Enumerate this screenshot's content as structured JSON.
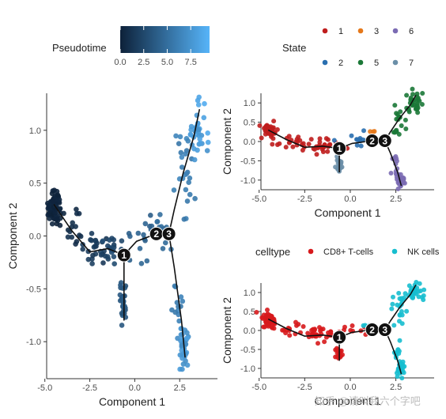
{
  "legends": {
    "pseudotime": {
      "title": "Pseudotime",
      "ticks": [
        0.0,
        2.5,
        5.0,
        7.5
      ],
      "tick_labels": [
        "0.0",
        "2.5",
        "5.0",
        "7.5"
      ],
      "range": [
        0,
        9.5
      ],
      "color_low": "#0d2139",
      "color_high": "#56b4f9"
    },
    "state": {
      "title": "State",
      "items": [
        {
          "label": "1",
          "color": "#bf1d1d"
        },
        {
          "label": "3",
          "color": "#e5781a"
        },
        {
          "label": "6",
          "color": "#7b6bb3"
        },
        {
          "label": "2",
          "color": "#2a6fb0"
        },
        {
          "label": "5",
          "color": "#1b7837"
        },
        {
          "label": "7",
          "color": "#6b8fa8"
        }
      ]
    },
    "celltype": {
      "title": "celltype",
      "items": [
        {
          "label": "CD8+ T-cells",
          "color": "#d7191c"
        },
        {
          "label": "NK cells",
          "color": "#17becf"
        }
      ]
    }
  },
  "watermark": "知乎 @请叫我六个字吧",
  "chart_data": [
    {
      "type": "scatter",
      "panel": "pseudotime",
      "xlabel": "Component 1",
      "ylabel": "Component 2",
      "xlim": [
        -4.9,
        4.6
      ],
      "ylim": [
        -1.35,
        1.35
      ],
      "xticks": [
        -5,
        -2.5,
        0,
        2.5
      ],
      "xtick_labels": [
        "-5.0",
        "-2.5",
        "0.0",
        "2.5"
      ],
      "yticks": [
        -1,
        -0.5,
        0,
        0.5,
        1
      ],
      "ytick_labels": [
        "-1.0",
        "-0.5",
        "0.0",
        "0.5",
        "1.0"
      ],
      "color_by": "Pseudotime",
      "trajectory": [
        [
          -4.5,
          0.3
        ],
        [
          -3.5,
          0.05
        ],
        [
          -2.5,
          -0.15
        ],
        [
          -1.5,
          -0.12
        ],
        [
          -0.6,
          -0.18
        ],
        [
          0.1,
          -0.05
        ],
        [
          1.2,
          0.02
        ],
        [
          1.9,
          0.02
        ],
        [
          2.2,
          0.25
        ],
        [
          2.7,
          0.6
        ],
        [
          3.3,
          0.95
        ],
        [
          3.6,
          1.2
        ]
      ],
      "trajectory_branches": [
        [
          [
            -0.6,
            -0.18
          ],
          [
            -0.6,
            -0.8
          ]
        ],
        [
          [
            1.9,
            0.02
          ],
          [
            2.2,
            -0.3
          ],
          [
            2.6,
            -0.8
          ],
          [
            2.8,
            -1.15
          ]
        ]
      ],
      "branch_nodes": [
        {
          "label": "1",
          "x": -0.6,
          "y": -0.18
        },
        {
          "label": "2",
          "x": 1.2,
          "y": 0.02
        },
        {
          "label": "3",
          "x": 1.9,
          "y": 0.02
        }
      ],
      "clusters": [
        {
          "x": -4.45,
          "y": 0.28,
          "sx": 0.18,
          "sy": 0.09,
          "n": 70,
          "t": [
            0.0,
            0.4
          ]
        },
        {
          "x": -3.4,
          "y": 0.02,
          "sx": 0.35,
          "sy": 0.08,
          "n": 14,
          "t": [
            0.5,
            1.2
          ]
        },
        {
          "x": -2.2,
          "y": -0.1,
          "sx": 0.45,
          "sy": 0.1,
          "n": 28,
          "t": [
            1.2,
            2.2
          ]
        },
        {
          "x": -1.0,
          "y": -0.1,
          "sx": 0.45,
          "sy": 0.08,
          "n": 18,
          "t": [
            2.2,
            3.0
          ]
        },
        {
          "x": -0.65,
          "y": -0.6,
          "sx": 0.1,
          "sy": 0.12,
          "n": 30,
          "t": [
            3.0,
            3.8
          ]
        },
        {
          "x": 0.5,
          "y": 0.05,
          "sx": 0.5,
          "sy": 0.12,
          "n": 18,
          "t": [
            3.8,
            4.6
          ]
        },
        {
          "x": 1.5,
          "y": 0.05,
          "sx": 0.3,
          "sy": 0.08,
          "n": 12,
          "t": [
            4.6,
            5.2
          ]
        },
        {
          "x": 2.8,
          "y": 0.6,
          "sx": 0.25,
          "sy": 0.2,
          "n": 25,
          "t": [
            5.5,
            6.8
          ]
        },
        {
          "x": 3.5,
          "y": 1.0,
          "sx": 0.22,
          "sy": 0.12,
          "n": 35,
          "t": [
            7.0,
            9.0
          ]
        },
        {
          "x": 2.5,
          "y": -0.6,
          "sx": 0.15,
          "sy": 0.15,
          "n": 12,
          "t": [
            5.5,
            6.5
          ]
        },
        {
          "x": 2.75,
          "y": -1.05,
          "sx": 0.12,
          "sy": 0.1,
          "n": 40,
          "t": [
            6.8,
            8.2
          ]
        }
      ]
    },
    {
      "type": "scatter",
      "panel": "state",
      "xlabel": "Component 1",
      "ylabel": "Component 2",
      "xlim": [
        -4.9,
        4.6
      ],
      "ylim": [
        -1.25,
        1.25
      ],
      "xticks": [
        -5,
        -2.5,
        0,
        2.5
      ],
      "xtick_labels": [
        "-5.0",
        "-2.5",
        "0.0",
        "2.5"
      ],
      "yticks": [
        -1,
        -0.5,
        0,
        0.5,
        1
      ],
      "ytick_labels": [
        "-1.0",
        "-0.5",
        "0.0",
        "0.5",
        "1.0"
      ],
      "color_by": "State",
      "trajectory": [
        [
          -4.5,
          0.3
        ],
        [
          -3.5,
          0.05
        ],
        [
          -2.5,
          -0.15
        ],
        [
          -1.5,
          -0.12
        ],
        [
          -0.6,
          -0.18
        ],
        [
          0.1,
          -0.05
        ],
        [
          1.2,
          0.02
        ],
        [
          1.9,
          0.02
        ],
        [
          2.2,
          0.25
        ],
        [
          2.7,
          0.6
        ],
        [
          3.3,
          0.95
        ],
        [
          3.6,
          1.2
        ]
      ],
      "trajectory_branches": [
        [
          [
            -0.6,
            -0.18
          ],
          [
            -0.6,
            -0.8
          ]
        ],
        [
          [
            1.9,
            0.02
          ],
          [
            2.2,
            -0.3
          ],
          [
            2.6,
            -0.8
          ],
          [
            2.8,
            -1.15
          ]
        ]
      ],
      "branch_nodes": [
        {
          "label": "1",
          "x": -0.6,
          "y": -0.18
        },
        {
          "label": "2",
          "x": 1.2,
          "y": 0.02
        },
        {
          "label": "3",
          "x": 1.9,
          "y": 0.02
        }
      ],
      "clusters": [
        {
          "x": -4.45,
          "y": 0.28,
          "sx": 0.18,
          "sy": 0.09,
          "n": 50,
          "state": "1"
        },
        {
          "x": -3.4,
          "y": 0.02,
          "sx": 0.35,
          "sy": 0.08,
          "n": 12,
          "state": "1"
        },
        {
          "x": -2.2,
          "y": -0.1,
          "sx": 0.45,
          "sy": 0.1,
          "n": 25,
          "state": "1"
        },
        {
          "x": -1.0,
          "y": -0.1,
          "sx": 0.45,
          "sy": 0.08,
          "n": 12,
          "state": "1"
        },
        {
          "x": -0.65,
          "y": -0.6,
          "sx": 0.1,
          "sy": 0.12,
          "n": 25,
          "state": "7"
        },
        {
          "x": 0.5,
          "y": 0.05,
          "sx": 0.5,
          "sy": 0.12,
          "n": 14,
          "state": "2"
        },
        {
          "x": 1.2,
          "y": 0.25,
          "sx": 0.1,
          "sy": 0.05,
          "n": 3,
          "state": "3"
        },
        {
          "x": 2.8,
          "y": 0.6,
          "sx": 0.25,
          "sy": 0.2,
          "n": 20,
          "state": "5"
        },
        {
          "x": 3.5,
          "y": 1.0,
          "sx": 0.22,
          "sy": 0.12,
          "n": 30,
          "state": "5"
        },
        {
          "x": 2.5,
          "y": -0.6,
          "sx": 0.15,
          "sy": 0.15,
          "n": 10,
          "state": "6"
        },
        {
          "x": 2.75,
          "y": -1.0,
          "sx": 0.12,
          "sy": 0.1,
          "n": 30,
          "state": "6"
        }
      ]
    },
    {
      "type": "scatter",
      "panel": "celltype",
      "xlabel": "Component 1",
      "ylabel": "Component 2",
      "xlim": [
        -4.9,
        4.6
      ],
      "ylim": [
        -1.25,
        1.25
      ],
      "xticks": [
        -5,
        -2.5,
        0,
        2.5
      ],
      "xtick_labels": [
        "-5.0",
        "-2.5",
        "0.0",
        "2.5"
      ],
      "yticks": [
        -1,
        -0.5,
        0,
        0.5,
        1
      ],
      "ytick_labels": [
        "-1.0",
        "-0.5",
        "0.0",
        "0.5",
        "1.0"
      ],
      "color_by": "celltype",
      "trajectory": [
        [
          -4.5,
          0.3
        ],
        [
          -3.5,
          0.05
        ],
        [
          -2.5,
          -0.15
        ],
        [
          -1.5,
          -0.12
        ],
        [
          -0.6,
          -0.18
        ],
        [
          0.1,
          -0.05
        ],
        [
          1.2,
          0.02
        ],
        [
          1.9,
          0.02
        ],
        [
          2.2,
          0.25
        ],
        [
          2.7,
          0.6
        ],
        [
          3.3,
          0.95
        ],
        [
          3.6,
          1.2
        ]
      ],
      "trajectory_branches": [
        [
          [
            -0.6,
            -0.18
          ],
          [
            -0.6,
            -0.8
          ]
        ],
        [
          [
            1.9,
            0.02
          ],
          [
            2.2,
            -0.3
          ],
          [
            2.6,
            -0.8
          ],
          [
            2.8,
            -1.15
          ]
        ]
      ],
      "branch_nodes": [
        {
          "label": "1",
          "x": -0.6,
          "y": -0.18
        },
        {
          "label": "2",
          "x": 1.2,
          "y": 0.02
        },
        {
          "label": "3",
          "x": 1.9,
          "y": 0.02
        }
      ],
      "clusters": [
        {
          "x": -4.45,
          "y": 0.28,
          "sx": 0.18,
          "sy": 0.09,
          "n": 50,
          "celltype": "CD8+ T-cells"
        },
        {
          "x": -3.4,
          "y": 0.02,
          "sx": 0.35,
          "sy": 0.08,
          "n": 12,
          "celltype": "CD8+ T-cells"
        },
        {
          "x": -2.2,
          "y": -0.1,
          "sx": 0.45,
          "sy": 0.1,
          "n": 25,
          "celltype": "CD8+ T-cells"
        },
        {
          "x": -1.0,
          "y": -0.1,
          "sx": 0.45,
          "sy": 0.08,
          "n": 12,
          "celltype": "CD8+ T-cells"
        },
        {
          "x": -0.65,
          "y": -0.6,
          "sx": 0.1,
          "sy": 0.12,
          "n": 20,
          "celltype": "CD8+ T-cells"
        },
        {
          "x": 0.5,
          "y": 0.05,
          "sx": 0.5,
          "sy": 0.12,
          "n": 10,
          "celltype": "CD8+ T-cells"
        },
        {
          "x": 0.9,
          "y": 0.1,
          "sx": 0.3,
          "sy": 0.08,
          "n": 5,
          "celltype": "NK cells"
        },
        {
          "x": 2.8,
          "y": 0.6,
          "sx": 0.25,
          "sy": 0.2,
          "n": 20,
          "celltype": "NK cells"
        },
        {
          "x": 3.5,
          "y": 1.0,
          "sx": 0.22,
          "sy": 0.12,
          "n": 30,
          "celltype": "NK cells"
        },
        {
          "x": 2.5,
          "y": -0.6,
          "sx": 0.15,
          "sy": 0.15,
          "n": 10,
          "celltype": "NK cells"
        },
        {
          "x": 2.75,
          "y": -1.0,
          "sx": 0.12,
          "sy": 0.1,
          "n": 30,
          "celltype": "NK cells"
        }
      ]
    }
  ]
}
